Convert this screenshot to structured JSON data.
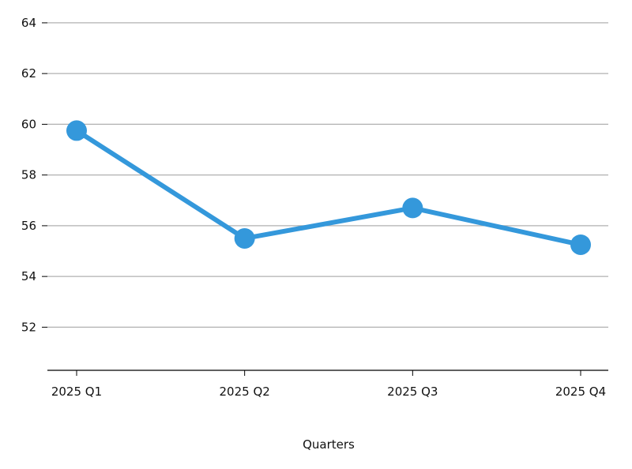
{
  "chart_data": {
    "type": "line",
    "title": "",
    "xlabel": "Quarters",
    "ylabel": "",
    "categories": [
      "2025 Q1",
      "2025 Q2",
      "2025 Q3",
      "2025 Q4"
    ],
    "series": [
      {
        "values": [
          59.75,
          55.5,
          56.7,
          55.25
        ],
        "color": "#3498db"
      }
    ],
    "ylim": [
      50.3,
      64.9
    ],
    "yticks": [
      52,
      54,
      56,
      58,
      60,
      62,
      64
    ],
    "grid": "horizontal",
    "legend": "none",
    "colors": {
      "line": "#3498db",
      "grid": "#b0b0b0",
      "axis": "#000000"
    }
  }
}
